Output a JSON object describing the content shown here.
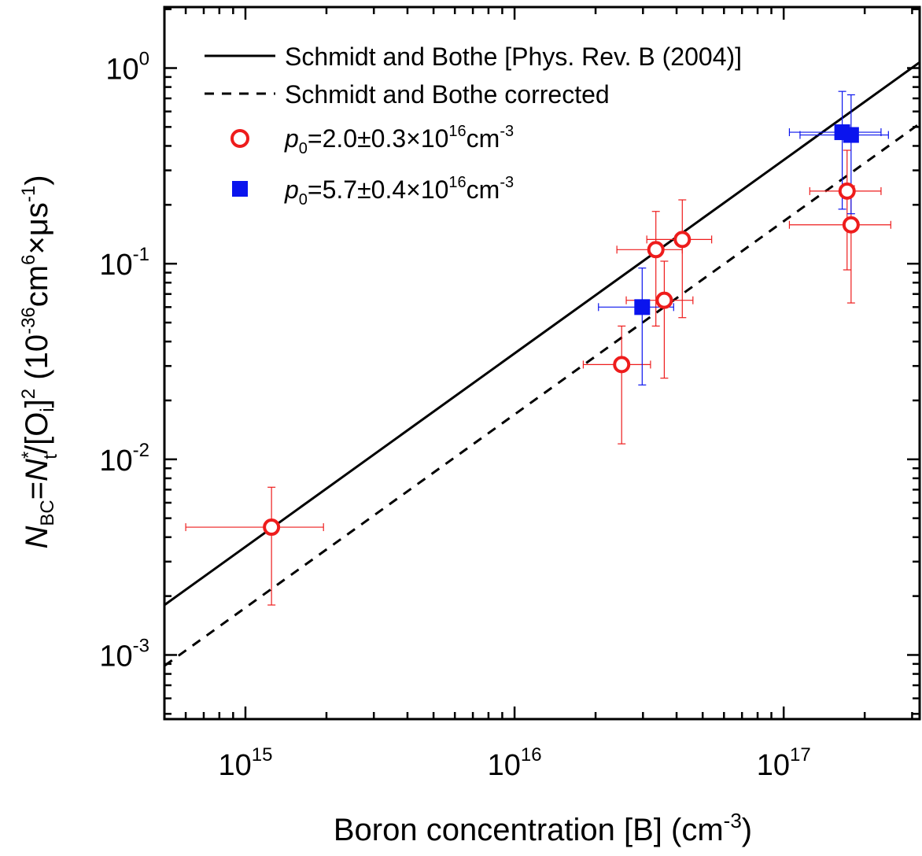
{
  "chart_data": {
    "type": "scatter",
    "x_scale": "log",
    "y_scale": "log",
    "xlim": [
      500000000000000.0,
      3.2e+17
    ],
    "ylim": [
      0.00047,
      2.05
    ],
    "x_ticks": [
      {
        "value": 1000000000000000.0,
        "base": "10",
        "exp": "15"
      },
      {
        "value": 1e+16,
        "base": "10",
        "exp": "16"
      },
      {
        "value": 1e+17,
        "base": "10",
        "exp": "17"
      }
    ],
    "y_ticks": [
      {
        "value": 1,
        "base": "10",
        "exp": "0"
      },
      {
        "value": 0.1,
        "base": "10",
        "exp": "-1"
      },
      {
        "value": 0.01,
        "base": "10",
        "exp": "-2"
      },
      {
        "value": 0.001,
        "base": "10",
        "exp": "-3"
      }
    ],
    "xlabel": {
      "main": "Boron concentration [B] (cm",
      "sup": "-3",
      "close": ")"
    },
    "ylabel": {
      "n": "N",
      "bc": "BC",
      "eq": "=",
      "nt": "N",
      "star": "*",
      "t": "t",
      "slash": "/[O",
      "i": "i",
      "br": "]",
      "two": "2",
      "unit1": " (10",
      "e36": "-36",
      "cm": "cm",
      "six": "6",
      "times": "×μs",
      "m1": "-1",
      "close": ")"
    },
    "lines": [
      {
        "name": "Schmidt and Bothe [Phys. Rev. B (2004)]",
        "style": "solid",
        "color": "#000000",
        "points": [
          [
            500000000000000.0,
            0.0018
          ],
          [
            3.2e+17,
            1.07
          ]
        ]
      },
      {
        "name": "Schmidt and Bothe corrected",
        "style": "dashed",
        "color": "#000000",
        "points": [
          [
            500000000000000.0,
            0.00088
          ],
          [
            3.2e+17,
            0.52
          ]
        ]
      }
    ],
    "series": [
      {
        "name": {
          "p": "p",
          "sub": "0",
          "text": "=2.0±0.3×10",
          "e": "16",
          "cm": "cm",
          "e2": "-3"
        },
        "marker": "circle-open",
        "color": "#ee1c1c",
        "points": [
          {
            "x": 1250000000000000.0,
            "y": 0.0045,
            "xlo": 600000000000000.0,
            "xhi": 1950000000000000.0,
            "ylo": 0.0018,
            "yhi": 0.0072
          },
          {
            "x": 2.5e+16,
            "y": 0.0305,
            "xlo": 1.8e+16,
            "xhi": 3.2e+16,
            "ylo": 0.012,
            "yhi": 0.048
          },
          {
            "x": 3.35e+16,
            "y": 0.118,
            "xlo": 2.4e+16,
            "xhi": 4.2e+16,
            "ylo": 0.048,
            "yhi": 0.185
          },
          {
            "x": 3.6e+16,
            "y": 0.065,
            "xlo": 2.6e+16,
            "xhi": 4.6e+16,
            "ylo": 0.026,
            "yhi": 0.103
          },
          {
            "x": 4.2e+16,
            "y": 0.133,
            "xlo": 3.1e+16,
            "xhi": 5.4e+16,
            "ylo": 0.053,
            "yhi": 0.212
          },
          {
            "x": 1.72e+17,
            "y": 0.235,
            "xlo": 1.25e+17,
            "xhi": 2.3e+17,
            "ylo": 0.093,
            "yhi": 0.38
          },
          {
            "x": 1.78e+17,
            "y": 0.158,
            "xlo": 1.05e+17,
            "xhi": 2.5e+17,
            "ylo": 0.063,
            "yhi": 0.25
          }
        ]
      },
      {
        "name": {
          "p": "p",
          "sub": "0",
          "text": "=5.7±0.4×10",
          "e": "16",
          "cm": "cm",
          "e2": "-3"
        },
        "marker": "square-filled",
        "color": "#0a14ee",
        "points": [
          {
            "x": 2.98e+16,
            "y": 0.06,
            "xlo": 2.05e+16,
            "xhi": 3.9e+16,
            "ylo": 0.024,
            "yhi": 0.095
          },
          {
            "x": 1.65e+17,
            "y": 0.47,
            "xlo": 1.05e+17,
            "xhi": 2.3e+17,
            "ylo": 0.19,
            "yhi": 0.76
          },
          {
            "x": 1.78e+17,
            "y": 0.455,
            "xlo": 1.15e+17,
            "xhi": 2.45e+17,
            "ylo": 0.18,
            "yhi": 0.73
          }
        ]
      }
    ]
  }
}
